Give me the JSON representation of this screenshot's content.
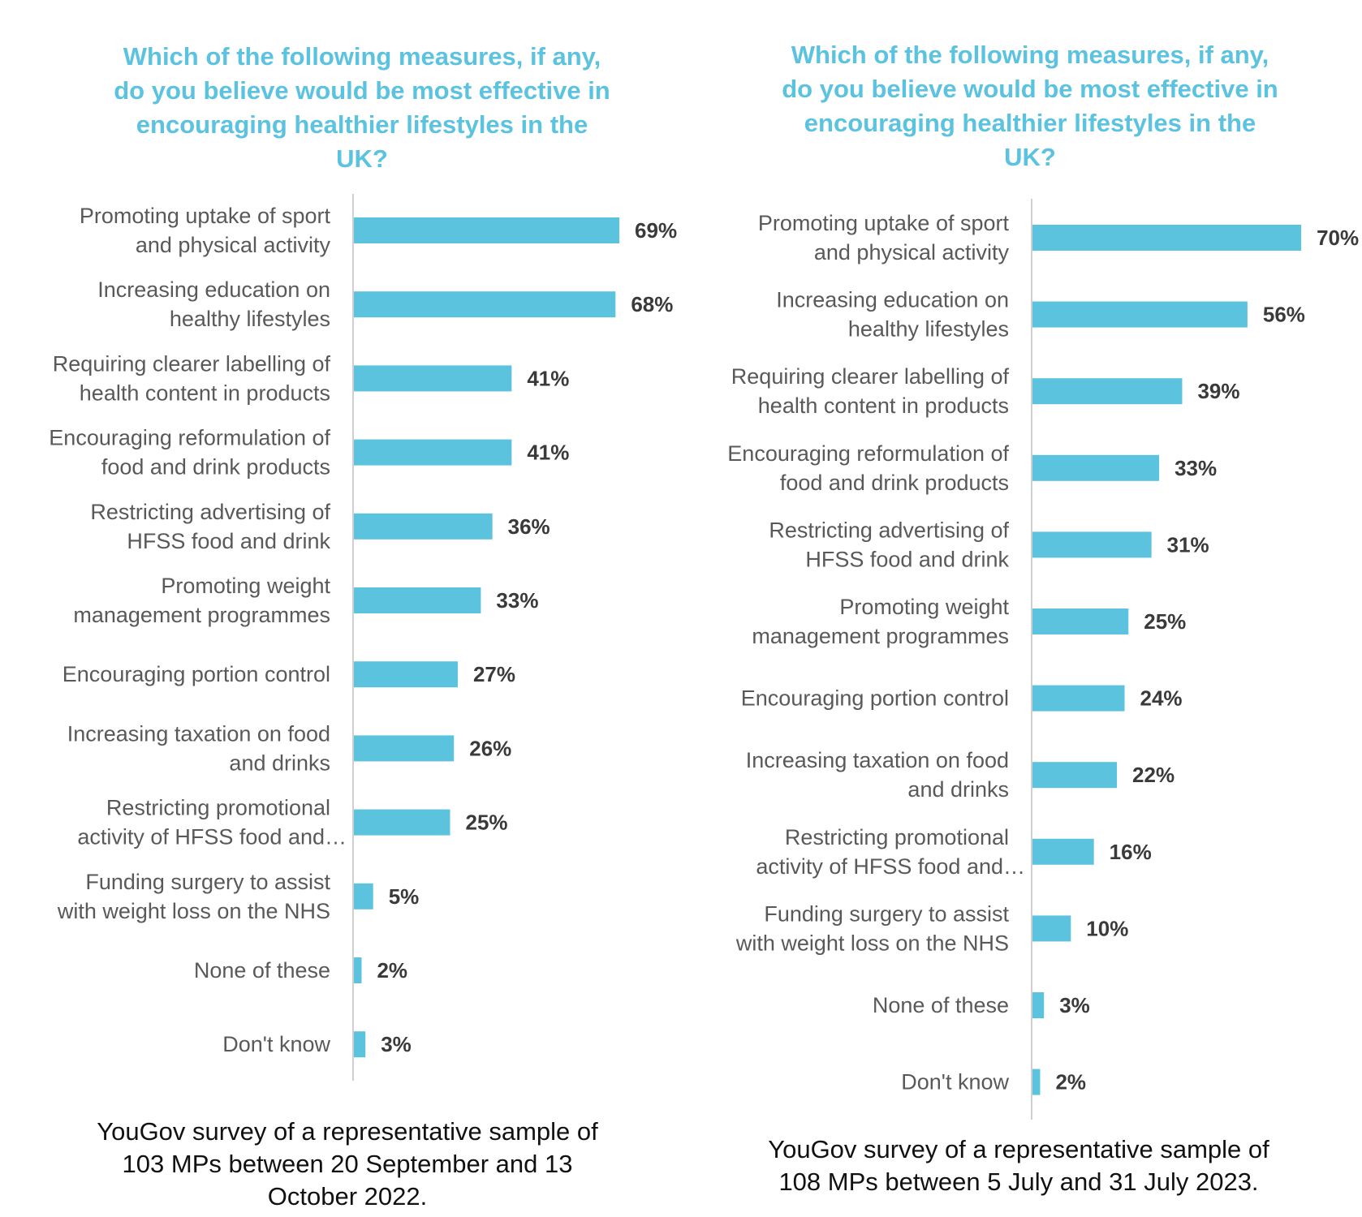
{
  "colors": {
    "bar": "#5bc3de",
    "title": "#5bc3df",
    "axis": "#d0d0d0"
  },
  "chart_data": [
    {
      "type": "bar",
      "orientation": "horizontal",
      "title_lines": [
        "Which of the following measures, if any,",
        "do you believe would be most effective in",
        "encouraging healthier lifestyles in the",
        "UK?"
      ],
      "categories": [
        [
          "Promoting uptake of sport",
          "and physical activity"
        ],
        [
          "Increasing education on",
          "healthy lifestyles"
        ],
        [
          "Requiring clearer labelling of",
          "health content in products"
        ],
        [
          "Encouraging reformulation of",
          "food and drink products"
        ],
        [
          "Restricting advertising of",
          "HFSS food and drink"
        ],
        [
          "Promoting weight",
          "management programmes"
        ],
        [
          "Encouraging portion control"
        ],
        [
          "Increasing taxation on food",
          "and drinks"
        ],
        [
          "Restricting promotional",
          "activity of HFSS food and…"
        ],
        [
          "Funding surgery to assist",
          "with weight loss on the NHS"
        ],
        [
          "None of these"
        ],
        [
          "Don't know"
        ]
      ],
      "values": [
        69,
        68,
        41,
        41,
        36,
        33,
        27,
        26,
        25,
        5,
        2,
        3
      ],
      "value_labels": [
        "69%",
        "68%",
        "41%",
        "41%",
        "36%",
        "33%",
        "27%",
        "26%",
        "25%",
        "5%",
        "2%",
        "3%"
      ],
      "unit": "%",
      "grid": false,
      "footnote_lines": [
        "YouGov survey of a representative sample of",
        "103 MPs between 20 September and 13",
        "October 2022."
      ]
    },
    {
      "type": "bar",
      "orientation": "horizontal",
      "title_lines": [
        "Which of the following measures, if any,",
        "do you believe would be most effective in",
        "encouraging healthier lifestyles in the",
        "UK?"
      ],
      "categories": [
        [
          "Promoting uptake of sport",
          "and physical activity"
        ],
        [
          "Increasing education on",
          "healthy lifestyles"
        ],
        [
          "Requiring clearer labelling of",
          "health content in products"
        ],
        [
          "Encouraging reformulation of",
          "food and drink products"
        ],
        [
          "Restricting advertising of",
          "HFSS food and drink"
        ],
        [
          "Promoting weight",
          "management programmes"
        ],
        [
          "Encouraging portion control"
        ],
        [
          "Increasing taxation on food",
          "and drinks"
        ],
        [
          "Restricting promotional",
          "activity of HFSS food and…"
        ],
        [
          "Funding surgery to assist",
          "with weight loss on the NHS"
        ],
        [
          "None of these"
        ],
        [
          "Don't know"
        ]
      ],
      "values": [
        70,
        56,
        39,
        33,
        31,
        25,
        24,
        22,
        16,
        10,
        3,
        2
      ],
      "value_labels": [
        "70%",
        "56%",
        "39%",
        "33%",
        "31%",
        "25%",
        "24%",
        "22%",
        "16%",
        "10%",
        "3%",
        "2%"
      ],
      "unit": "%",
      "grid": false,
      "footnote_lines": [
        "YouGov survey of a representative sample of",
        "108 MPs between 5 July and 31 July 2023."
      ]
    }
  ]
}
